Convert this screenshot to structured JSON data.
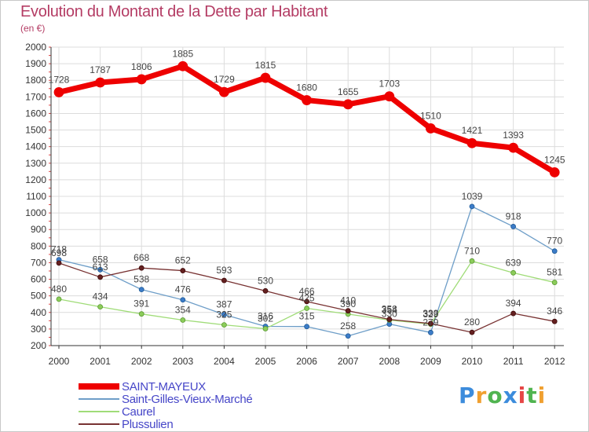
{
  "header": {
    "title": "Evolution du Montant de la Dette par Habitant",
    "subtitle": "(en €)"
  },
  "logo": {
    "text": "Proxiti",
    "letter_colors": [
      "#3c8cdc",
      "#f0a030",
      "#50b450",
      "#3c8cdc",
      "#e64646",
      "#50b450",
      "#f0a030"
    ]
  },
  "chart_data": {
    "type": "line",
    "title": "Evolution du Montant de la Dette par Habitant",
    "subtitle": "(en €)",
    "xlabel": "",
    "ylabel": "",
    "x": [
      "2000",
      "2001",
      "2002",
      "2003",
      "2004",
      "2005",
      "2006",
      "2007",
      "2008",
      "2009",
      "2010",
      "2011",
      "2012"
    ],
    "ylim": [
      200,
      2000
    ],
    "yticks": [
      200,
      300,
      400,
      500,
      600,
      700,
      800,
      900,
      1000,
      1100,
      1200,
      1300,
      1400,
      1500,
      1600,
      1700,
      1800,
      1900,
      2000
    ],
    "grid": true,
    "legend_position": "bottom-left",
    "series": [
      {
        "name": "SAINT-MAYEUX",
        "color": "#ee0000",
        "values": [
          1728,
          1787,
          1806,
          1885,
          1729,
          1815,
          1680,
          1655,
          1703,
          1510,
          1421,
          1393,
          1245
        ]
      },
      {
        "name": "Saint-Gilles-Vieux-Marché",
        "color": "#6e9ec8",
        "values": [
          718,
          658,
          538,
          476,
          387,
          316,
          315,
          258,
          330,
          279,
          1039,
          918,
          770
        ]
      },
      {
        "name": "Caurel",
        "color": "#a0dc78",
        "values": [
          480,
          434,
          391,
          354,
          325,
          302,
          425,
          390,
          354,
          329,
          710,
          639,
          581
        ]
      },
      {
        "name": "Plussulien",
        "color": "#783232",
        "values": [
          698,
          613,
          668,
          652,
          593,
          530,
          466,
          410,
          358,
          333,
          280,
          394,
          346
        ]
      }
    ]
  }
}
